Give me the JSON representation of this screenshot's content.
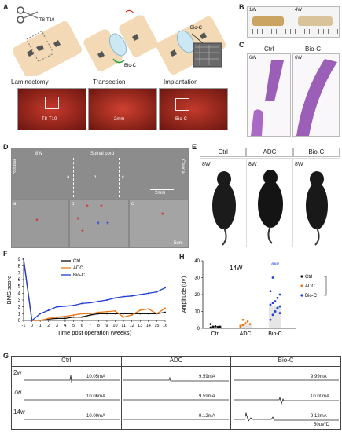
{
  "panels": {
    "a": "A",
    "b": "B",
    "c": "C",
    "d": "D",
    "e": "E",
    "f": "F",
    "g": "G",
    "h": "H"
  },
  "panelA": {
    "levels": "T8-T10",
    "bioc": "Bio-C",
    "bioc2": "Bio-C",
    "steps": [
      "Laminectomy",
      "Transection",
      "Implantation"
    ],
    "photo_labels": [
      "T8-T10",
      "2mm",
      "Bio-C"
    ]
  },
  "panelB": {
    "w1": "1W",
    "w4": "4W"
  },
  "panelC": {
    "ctrl": "Ctrl",
    "bioc": "Bio-C",
    "w_left": "6W",
    "w_right": "6W"
  },
  "panelD": {
    "week": "8W",
    "spinal": "Spinal cord",
    "rostral": "Rostral",
    "caudal": "Caudal",
    "seg_a": "a",
    "seg_b": "b",
    "seg_c": "c",
    "scale_top": "2mm",
    "sub_a": "a",
    "sub_b": "b",
    "sub_c": "c",
    "scale_bottom": "5um"
  },
  "panelE": {
    "groups": [
      "Ctrl",
      "ADC",
      "Bio-C"
    ],
    "weeks": [
      "8W",
      "8W",
      "8W"
    ]
  },
  "panelF": {
    "ylabel": "BMS score",
    "xlabel": "Time post operation (weeks)",
    "legend": [
      "Ctrl",
      "ADC",
      "Bio-C"
    ],
    "yticks": [
      "0",
      "1",
      "2",
      "3",
      "4",
      "5",
      "6",
      "7",
      "8",
      "9"
    ],
    "xticks": [
      "-1",
      "0",
      "1",
      "2",
      "3",
      "4",
      "5",
      "6",
      "7",
      "8",
      "9",
      "10",
      "11",
      "12",
      "13",
      "14",
      "15",
      "16"
    ]
  },
  "panelH": {
    "week": "14W",
    "ylabel": "Amplitude (uV)",
    "categories": [
      "Ctrl",
      "ADC",
      "Bio-C"
    ],
    "yticks": [
      "0",
      "10",
      "20",
      "30",
      "40"
    ],
    "legend": [
      "Ctrl",
      "ADC",
      "Bio-C"
    ],
    "sig": "###"
  },
  "panelG": {
    "columns": [
      "Ctrl",
      "ADC",
      "Bio-C"
    ],
    "rows": [
      "2w",
      "7w",
      "14w"
    ],
    "amps": [
      [
        "10.05mA",
        "9.59mA",
        "9.99mA"
      ],
      [
        "10.06mA",
        "9.59mA",
        "10.00mA"
      ],
      [
        "10.09mA",
        "9.12mA",
        "9.12mA"
      ]
    ],
    "scale": "50uV/D"
  },
  "colors": {
    "ctrl": "#111111",
    "adc": "#e87b1c",
    "bioc": "#1f3fd0",
    "tissue": "#f3d9b5",
    "he": "#9b5fb8"
  },
  "chart_data": [
    {
      "type": "line",
      "title": "",
      "xlabel": "Time post operation (weeks)",
      "ylabel": "BMS score",
      "x": [
        -1,
        0,
        1,
        2,
        3,
        4,
        5,
        6,
        7,
        8,
        9,
        10,
        11,
        12,
        13,
        14,
        15,
        16
      ],
      "ylim": [
        0,
        9
      ],
      "series": [
        {
          "name": "Ctrl",
          "values": [
            9,
            0,
            0,
            0.2,
            0.3,
            0.3,
            0.5,
            0.5,
            0.8,
            1,
            1,
            1,
            1,
            1,
            1,
            1,
            1,
            1.2
          ]
        },
        {
          "name": "ADC",
          "values": [
            9,
            0,
            0,
            0.3,
            0.5,
            0.6,
            0.8,
            1,
            1,
            1.2,
            1.3,
            1.4,
            0.5,
            0.8,
            1.5,
            1.7,
            1,
            1.8
          ]
        },
        {
          "name": "Bio-C",
          "values": [
            9,
            0,
            1,
            1.5,
            2,
            2.1,
            2.2,
            2.5,
            2.6,
            2.8,
            3,
            3.3,
            3.5,
            3.6,
            3.8,
            4,
            4.2,
            4.8
          ]
        }
      ],
      "legend": "top-left"
    },
    {
      "type": "scatter",
      "title": "",
      "xlabel": "",
      "ylabel": "Amplitude (uV)",
      "categories": [
        "Ctrl",
        "ADC",
        "Bio-C"
      ],
      "ylim": [
        0,
        40
      ],
      "means": [
        1,
        2.5,
        13.5
      ],
      "series": [
        {
          "name": "Ctrl",
          "values": [
            0.5,
            1,
            1.2,
            0.8,
            1,
            2.5,
            0.6
          ]
        },
        {
          "name": "ADC",
          "values": [
            1,
            2,
            3,
            4,
            2.5,
            1.5,
            5,
            3
          ]
        },
        {
          "name": "Bio-C",
          "values": [
            5,
            8,
            10,
            12,
            13,
            14,
            15,
            16,
            18,
            20,
            22,
            30,
            10,
            12,
            9
          ]
        }
      ],
      "legend": "right"
    }
  ]
}
